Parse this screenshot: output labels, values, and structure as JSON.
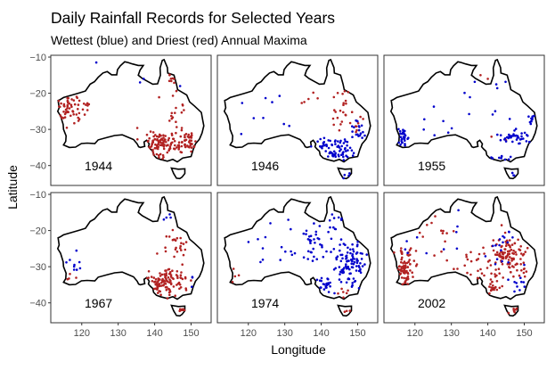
{
  "title": "Daily Rainfall Records for Selected Years",
  "subtitle": "Wettest (blue) and Driest (red) Annual Maxima",
  "colors": {
    "wettest": "#0000cc",
    "driest": "#b22222",
    "coast": "#000000"
  },
  "chart_data": {
    "type": "scatter",
    "title": "Daily Rainfall Records for Selected Years",
    "subtitle": "Wettest (blue) and Driest (red) Annual Maxima",
    "xlabel": "Longitude",
    "ylabel": "Latitude",
    "xlim": [
      111.5,
      155.5
    ],
    "ylim": [
      -45.5,
      -9.5
    ],
    "xticks": [
      120,
      130,
      140,
      150
    ],
    "yticks": [
      -10,
      -20,
      -30,
      -40
    ],
    "grid": false,
    "facets": [
      {
        "year": "1944",
        "series": [
          {
            "name": "Wettest",
            "points": [
              [
                124,
                -11.5
              ],
              [
                147,
                -18
              ],
              [
                137,
                -16
              ],
              [
                136,
                -17
              ]
            ]
          },
          {
            "name": "Driest",
            "clusters": [
              {
                "c": [
                  116.5,
                  -24
                ],
                "s": [
                  3,
                  4
                ],
                "n": 55
              },
              {
                "c": [
                  122,
                  -23
                ],
                "s": [
                  1.5,
                  1.2
                ],
                "n": 6
              },
              {
                "c": [
                  142,
                  -34
                ],
                "s": [
                  5,
                  3
                ],
                "n": 90
              },
              {
                "c": [
                  149,
                  -34
                ],
                "s": [
                  2,
                  2.5
                ],
                "n": 45
              },
              {
                "c": [
                  146,
                  -24
                ],
                "s": [
                  3,
                  4
                ],
                "n": 16
              },
              {
                "c": [
                  146,
                  -16
                ],
                "s": [
                  2,
                  2
                ],
                "n": 8
              },
              {
                "c": [
                  139,
                  -35
                ],
                "s": [
                  2,
                  1.5
                ],
                "n": 10
              }
            ]
          }
        ]
      },
      {
        "year": "1946",
        "series": [
          {
            "name": "Wettest",
            "clusters": [
              {
                "c": [
                  143,
                  -35
                ],
                "s": [
                  5,
                  2.5
                ],
                "n": 55
              },
              {
                "c": [
                  150,
                  -31
                ],
                "s": [
                  1.5,
                  3
                ],
                "n": 18
              },
              {
                "c": [
                  145,
                  -37
                ],
                "s": [
                  3,
                  1
                ],
                "n": 18
              },
              {
                "c": [
                  147,
                  -42.5
                ],
                "s": [
                  1,
                  0.8
                ],
                "n": 4
              },
              {
                "c": [
                  125,
                  -26
                ],
                "s": [
                  8,
                  5
                ],
                "n": 9
              }
            ]
          },
          {
            "name": "Driest",
            "clusters": [
              {
                "c": [
                  146,
                  -25
                ],
                "s": [
                  2.5,
                  5
                ],
                "n": 22
              },
              {
                "c": [
                  150,
                  -28
                ],
                "s": [
                  1.5,
                  2
                ],
                "n": 9
              },
              {
                "c": [
                  137,
                  -19
                ],
                "s": [
                  3,
                  3
                ],
                "n": 5
              }
            ]
          }
        ]
      },
      {
        "year": "1955",
        "series": [
          {
            "name": "Wettest",
            "clusters": [
              {
                "c": [
                  116.5,
                  -32
                ],
                "s": [
                  1.2,
                  2.5
                ],
                "n": 28
              },
              {
                "c": [
                  147,
                  -32
                ],
                "s": [
                  3.5,
                  1.5
                ],
                "n": 38
              },
              {
                "c": [
                  152,
                  -27
                ],
                "s": [
                  0.8,
                  1.2
                ],
                "n": 10
              },
              {
                "c": [
                  143,
                  -38
                ],
                "s": [
                  2.5,
                  1
                ],
                "n": 9
              },
              {
                "c": [
                  147,
                  -42.5
                ],
                "s": [
                  1,
                  0.8
                ],
                "n": 4
              },
              {
                "c": [
                  140,
                  -24
                ],
                "s": [
                  6,
                  6
                ],
                "n": 10
              },
              {
                "c": [
                  127,
                  -28
                ],
                "s": [
                  7,
                  5
                ],
                "n": 7
              }
            ]
          },
          {
            "name": "Driest",
            "points": [
              [
                138,
                -15
              ],
              [
                140,
                -16
              ],
              [
                141,
                -32
              ],
              [
                145,
                -33
              ]
            ]
          }
        ]
      },
      {
        "year": "1967",
        "series": [
          {
            "name": "Wettest",
            "clusters": [
              {
                "c": [
                  118,
                  -28
                ],
                "s": [
                  3,
                  5
                ],
                "n": 9
              },
              {
                "c": [
                  145,
                  -17
                ],
                "s": [
                  2,
                  2.5
                ],
                "n": 4
              },
              {
                "c": [
                  150,
                  -34
                ],
                "s": [
                  1,
                  2
                ],
                "n": 3
              }
            ]
          },
          {
            "name": "Driest",
            "clusters": [
              {
                "c": [
                  143,
                  -34
                ],
                "s": [
                  4.5,
                  3
                ],
                "n": 110
              },
              {
                "c": [
                  146,
                  -24
                ],
                "s": [
                  3.5,
                  4
                ],
                "n": 25
              },
              {
                "c": [
                  148,
                  -42
                ],
                "s": [
                  1,
                  0.8
                ],
                "n": 8
              },
              {
                "c": [
                  117,
                  -33
                ],
                "s": [
                  1.5,
                  1.5
                ],
                "n": 4
              }
            ]
          }
        ]
      },
      {
        "year": "1974",
        "series": [
          {
            "name": "Wettest",
            "clusters": [
              {
                "c": [
                  148,
                  -29
                ],
                "s": [
                  3.5,
                  5
                ],
                "n": 100
              },
              {
                "c": [
                  139,
                  -24
                ],
                "s": [
                  4,
                  5
                ],
                "n": 35
              },
              {
                "c": [
                  141,
                  -35
                ],
                "s": [
                  3,
                  2
                ],
                "n": 22
              },
              {
                "c": [
                  127,
                  -24
                ],
                "s": [
                  8,
                  6
                ],
                "n": 14
              },
              {
                "c": [
                  145,
                  -17
                ],
                "s": [
                  3,
                  3
                ],
                "n": 12
              }
            ]
          },
          {
            "name": "Driest",
            "clusters": [
              {
                "c": [
                  146,
                  -37
                ],
                "s": [
                  2,
                  1
                ],
                "n": 6
              },
              {
                "c": [
                  116,
                  -32
                ],
                "s": [
                  1,
                  1.5
                ],
                "n": 4
              },
              {
                "c": [
                  147,
                  -42
                ],
                "s": [
                  0.8,
                  0.6
                ],
                "n": 3
              }
            ]
          }
        ]
      },
      {
        "year": "2002",
        "series": [
          {
            "name": "Wettest",
            "clusters": [
              {
                "c": [
                  144,
                  -25
                ],
                "s": [
                  4,
                  6
                ],
                "n": 18
              },
              {
                "c": [
                  148,
                  -35
                ],
                "s": [
                  2.5,
                  2
                ],
                "n": 10
              },
              {
                "c": [
                  119,
                  -25
                ],
                "s": [
                  3,
                  5
                ],
                "n": 5
              },
              {
                "c": [
                  132,
                  -20
                ],
                "s": [
                  4,
                  4
                ],
                "n": 5
              }
            ]
          },
          {
            "name": "Driest",
            "clusters": [
              {
                "c": [
                  117,
                  -30
                ],
                "s": [
                  2.5,
                  4.5
                ],
                "n": 75
              },
              {
                "c": [
                  146,
                  -27
                ],
                "s": [
                  4,
                  5
                ],
                "n": 110
              },
              {
                "c": [
                  136,
                  -30
                ],
                "s": [
                  6,
                  4
                ],
                "n": 30
              },
              {
                "c": [
                  126,
                  -20
                ],
                "s": [
                  4,
                  3
                ],
                "n": 12
              },
              {
                "c": [
                  141,
                  -36
                ],
                "s": [
                  3,
                  2
                ],
                "n": 20
              },
              {
                "c": [
                  147,
                  -42
                ],
                "s": [
                  1,
                  0.8
                ],
                "n": 7
              }
            ]
          }
        ]
      }
    ]
  }
}
